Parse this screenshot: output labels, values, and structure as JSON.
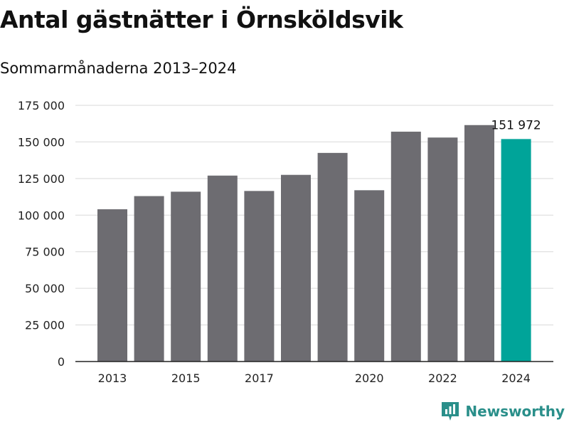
{
  "title": "Antal gästnätter i Örnsköldsvik",
  "subtitle": "Sommarmånaderna 2013–2024",
  "brand": "Newsworthy",
  "colors": {
    "bar": "#6d6c71",
    "highlight": "#00a499",
    "grid": "#d9d9d9",
    "brand": "#2a8f8a"
  },
  "chart_data": {
    "type": "bar",
    "categories": [
      "2013",
      "2014",
      "2015",
      "2016",
      "2017",
      "2018",
      "2019",
      "2020",
      "2021",
      "2022",
      "2023",
      "2024"
    ],
    "values": [
      104000,
      113000,
      116000,
      127000,
      116500,
      127500,
      142500,
      117000,
      157000,
      153000,
      161500,
      151972
    ],
    "highlight_index": 11,
    "ylim": [
      0,
      175000
    ],
    "yticks": [
      0,
      25000,
      50000,
      75000,
      100000,
      125000,
      150000,
      175000
    ],
    "ytick_labels": [
      "0",
      "25 000",
      "50 000",
      "75 000",
      "100 000",
      "125 000",
      "150 000",
      "175 000"
    ],
    "xtick_labels": [
      "2013",
      "",
      "2015",
      "",
      "2017",
      "",
      "",
      "2020",
      "",
      "2022",
      "",
      "2024"
    ],
    "annotation": {
      "index": 11,
      "text": "151 972"
    },
    "grid": true,
    "xlabel": "",
    "ylabel": ""
  }
}
